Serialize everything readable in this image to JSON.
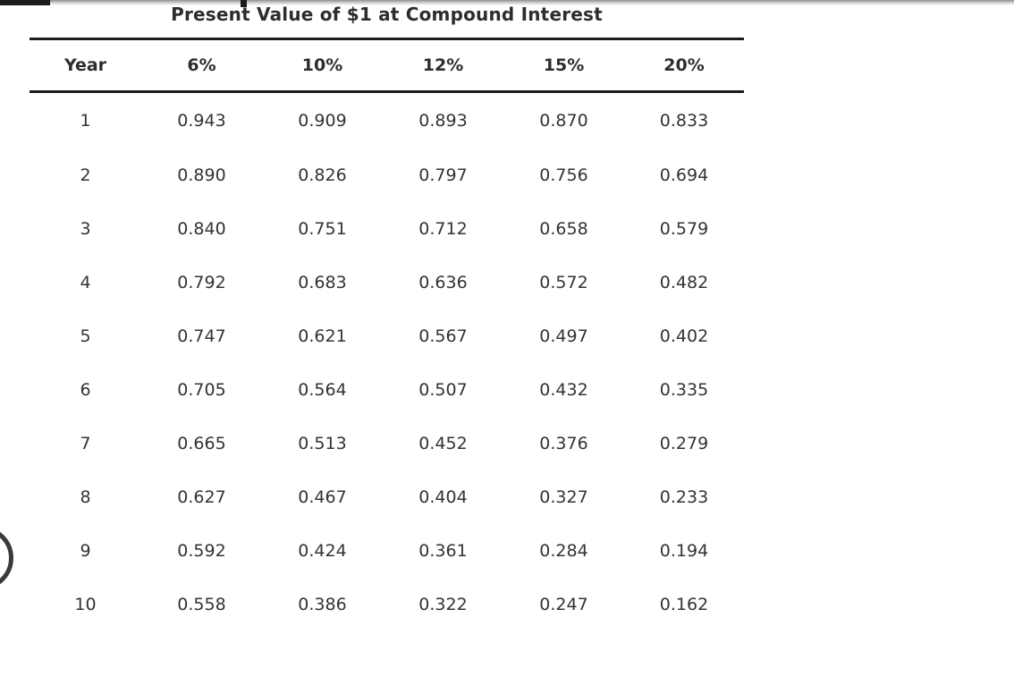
{
  "table": {
    "title": "Present Value of $1 at Compound Interest",
    "columns": [
      "Year",
      "6%",
      "10%",
      "12%",
      "15%",
      "20%"
    ],
    "rows": [
      [
        "1",
        "0.943",
        "0.909",
        "0.893",
        "0.870",
        "0.833"
      ],
      [
        "2",
        "0.890",
        "0.826",
        "0.797",
        "0.756",
        "0.694"
      ],
      [
        "3",
        "0.840",
        "0.751",
        "0.712",
        "0.658",
        "0.579"
      ],
      [
        "4",
        "0.792",
        "0.683",
        "0.636",
        "0.572",
        "0.482"
      ],
      [
        "5",
        "0.747",
        "0.621",
        "0.567",
        "0.497",
        "0.402"
      ],
      [
        "6",
        "0.705",
        "0.564",
        "0.507",
        "0.432",
        "0.335"
      ],
      [
        "7",
        "0.665",
        "0.513",
        "0.452",
        "0.376",
        "0.279"
      ],
      [
        "8",
        "0.627",
        "0.467",
        "0.404",
        "0.327",
        "0.233"
      ],
      [
        "9",
        "0.592",
        "0.424",
        "0.361",
        "0.284",
        "0.194"
      ],
      [
        "10",
        "0.558",
        "0.386",
        "0.322",
        "0.247",
        "0.162"
      ]
    ]
  },
  "colors": {
    "rule": "#1c1c1c",
    "title_text": "#2d2d2d",
    "cell_text": "#333333",
    "background": "#ffffff"
  }
}
